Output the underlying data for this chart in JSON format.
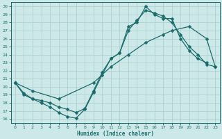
{
  "xlabel": "Humidex (Indice chaleur)",
  "xlim": [
    -0.5,
    23.5
  ],
  "ylim": [
    15.5,
    30.5
  ],
  "xticks": [
    0,
    1,
    2,
    3,
    4,
    5,
    6,
    7,
    8,
    9,
    10,
    11,
    12,
    13,
    14,
    15,
    16,
    17,
    18,
    19,
    20,
    21,
    22,
    23
  ],
  "yticks": [
    16,
    17,
    18,
    19,
    20,
    21,
    22,
    23,
    24,
    25,
    26,
    27,
    28,
    29,
    30
  ],
  "bg_color": "#cde8e8",
  "grid_color": "#aacccc",
  "line_color": "#1a6b6b",
  "line1_x": [
    0,
    1,
    2,
    3,
    4,
    5,
    6,
    7,
    8,
    9,
    10,
    11,
    12,
    13,
    14,
    15,
    16,
    17,
    18,
    19,
    20,
    21,
    22
  ],
  "line1_y": [
    20.5,
    19.0,
    18.5,
    18.0,
    17.5,
    16.8,
    16.3,
    16.1,
    17.2,
    19.3,
    21.5,
    23.5,
    24.2,
    27.5,
    28.0,
    30.0,
    29.0,
    28.5,
    28.5,
    26.0,
    24.5,
    23.5,
    23.0
  ],
  "line2_x": [
    0,
    1,
    2,
    3,
    4,
    5,
    6,
    7,
    8,
    9,
    10,
    11,
    12,
    13,
    14,
    15,
    16,
    17,
    18,
    19,
    20,
    21,
    22,
    23
  ],
  "line2_y": [
    20.5,
    19.2,
    18.5,
    18.3,
    18.0,
    17.5,
    17.2,
    16.8,
    17.3,
    19.5,
    21.8,
    23.5,
    24.2,
    27.0,
    28.3,
    29.5,
    29.2,
    28.8,
    28.0,
    26.5,
    25.0,
    24.0,
    22.8,
    22.5
  ],
  "line3_x": [
    0,
    2,
    5,
    9,
    11,
    13,
    15,
    17,
    18,
    20,
    22,
    23
  ],
  "line3_y": [
    20.5,
    19.5,
    18.5,
    20.5,
    22.5,
    24.0,
    25.5,
    26.5,
    27.0,
    27.5,
    26.0,
    22.5
  ],
  "markersize": 2.5,
  "linewidth": 0.9
}
